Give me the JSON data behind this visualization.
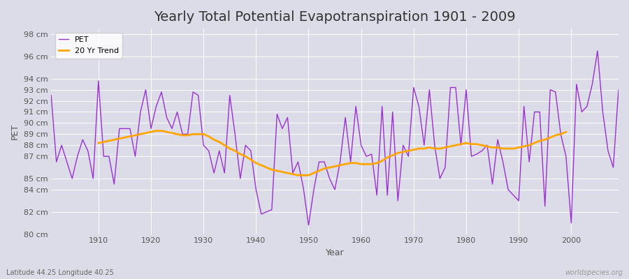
{
  "title": "Yearly Total Potential Evapotranspiration 1901 - 2009",
  "xlabel": "Year",
  "ylabel": "PET",
  "subtitle": "Latitude 44.25 Longitude 40.25",
  "watermark": "worldspecies.org",
  "pet_color": "#9B30D0",
  "trend_color": "#FFA500",
  "bg_color": "#DCDCE8",
  "years": [
    1901,
    1902,
    1903,
    1904,
    1905,
    1906,
    1907,
    1908,
    1909,
    1910,
    1911,
    1912,
    1913,
    1914,
    1915,
    1916,
    1917,
    1918,
    1919,
    1920,
    1921,
    1922,
    1923,
    1924,
    1925,
    1926,
    1927,
    1928,
    1929,
    1930,
    1931,
    1932,
    1933,
    1934,
    1935,
    1936,
    1937,
    1938,
    1939,
    1940,
    1941,
    1942,
    1943,
    1944,
    1945,
    1946,
    1947,
    1948,
    1949,
    1950,
    1951,
    1952,
    1953,
    1954,
    1955,
    1956,
    1957,
    1958,
    1959,
    1960,
    1961,
    1962,
    1963,
    1964,
    1965,
    1966,
    1967,
    1968,
    1969,
    1970,
    1971,
    1972,
    1973,
    1974,
    1975,
    1976,
    1977,
    1978,
    1979,
    1980,
    1981,
    1982,
    1983,
    1984,
    1985,
    1986,
    1987,
    1988,
    1989,
    1990,
    1991,
    1992,
    1993,
    1994,
    1995,
    1996,
    1997,
    1998,
    1999,
    2000,
    2001,
    2002,
    2003,
    2004,
    2005,
    2006,
    2007,
    2008,
    2009
  ],
  "pet_values": [
    92.5,
    86.5,
    88.0,
    86.5,
    85.0,
    87.0,
    88.5,
    87.5,
    85.0,
    93.8,
    87.0,
    87.0,
    84.5,
    89.5,
    89.5,
    89.5,
    87.0,
    91.0,
    93.0,
    89.5,
    91.5,
    92.8,
    90.5,
    89.5,
    91.0,
    89.0,
    89.0,
    92.8,
    92.5,
    88.0,
    87.5,
    85.5,
    87.5,
    85.5,
    92.5,
    89.0,
    85.0,
    88.0,
    87.5,
    84.0,
    81.8,
    82.0,
    82.2,
    90.8,
    89.5,
    90.5,
    85.5,
    86.5,
    84.2,
    80.8,
    84.0,
    86.5,
    86.5,
    85.0,
    84.0,
    86.5,
    90.5,
    86.5,
    91.5,
    88.0,
    87.0,
    87.2,
    83.5,
    91.5,
    83.5,
    91.0,
    83.0,
    88.0,
    87.0,
    93.2,
    91.5,
    88.0,
    93.0,
    88.0,
    85.0,
    86.0,
    93.2,
    93.2,
    88.0,
    93.0,
    87.0,
    87.2,
    87.5,
    88.0,
    84.5,
    88.5,
    86.5,
    84.0,
    83.5,
    83.0,
    91.5,
    86.5,
    91.0,
    91.0,
    82.5,
    93.0,
    92.8,
    89.0,
    87.0,
    81.0,
    93.5,
    91.0,
    91.5,
    93.5,
    96.5,
    91.0,
    87.5,
    86.0,
    93.0
  ],
  "trend_values": [
    null,
    null,
    null,
    null,
    null,
    null,
    null,
    null,
    null,
    88.2,
    88.3,
    88.4,
    88.5,
    88.6,
    88.7,
    88.8,
    88.9,
    89.0,
    89.1,
    89.2,
    89.3,
    89.3,
    89.2,
    89.1,
    89.0,
    88.9,
    88.9,
    89.0,
    89.0,
    89.0,
    88.8,
    88.5,
    88.3,
    88.0,
    87.7,
    87.5,
    87.2,
    87.0,
    86.7,
    86.4,
    86.2,
    86.0,
    85.8,
    85.7,
    85.6,
    85.5,
    85.4,
    85.3,
    85.3,
    85.3,
    85.5,
    85.7,
    85.9,
    86.0,
    86.1,
    86.2,
    86.3,
    86.4,
    86.4,
    86.3,
    86.3,
    86.3,
    86.4,
    86.6,
    86.9,
    87.1,
    87.3,
    87.4,
    87.5,
    87.6,
    87.7,
    87.7,
    87.8,
    87.7,
    87.7,
    87.8,
    87.9,
    88.0,
    88.1,
    88.2,
    88.1,
    88.1,
    88.0,
    87.9,
    87.8,
    87.8,
    87.7,
    87.7,
    87.7,
    87.8,
    87.9,
    88.0,
    88.2,
    88.4,
    88.5,
    88.7,
    88.9,
    89.0,
    89.2,
    null,
    null,
    null,
    null,
    null,
    null,
    null,
    null,
    null,
    null
  ],
  "ytick_positions": [
    80,
    82,
    84,
    85,
    87,
    88,
    89,
    90,
    91,
    92,
    93,
    94,
    96,
    98
  ],
  "ytick_labels": [
    "80 cm",
    "82 cm",
    "84 cm",
    "85 cm",
    "87 cm",
    "88 cm",
    "89 cm",
    "90 cm",
    "91 cm",
    "92 cm",
    "93 cm",
    "94 cm",
    "96 cm",
    "98 cm"
  ],
  "xtick_positions": [
    1910,
    1920,
    1930,
    1940,
    1950,
    1960,
    1970,
    1980,
    1990,
    2000
  ],
  "xlim": [
    1901,
    2009
  ],
  "ylim": [
    80,
    98.5
  ],
  "title_fontsize": 14,
  "axis_fontsize": 9,
  "tick_fontsize": 8,
  "legend_fontsize": 8
}
